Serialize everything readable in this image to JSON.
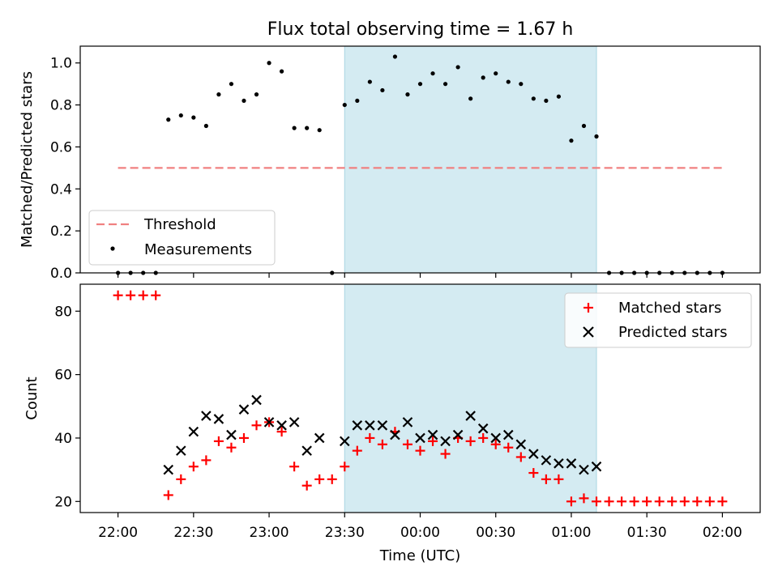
{
  "chart_data": [
    {
      "type": "scatter",
      "title": "Flux total observing time = 1.67 h",
      "xlabel": "",
      "ylabel": "Matched/Predicted stars",
      "ylim": [
        0.0,
        1.08
      ],
      "yticks": [
        "0.0",
        "0.2",
        "0.4",
        "0.6",
        "0.8",
        "1.0"
      ],
      "x_range": [
        "21:45",
        "02:15"
      ],
      "shaded_range": [
        "23:30",
        "01:10"
      ],
      "shaded_color": "#d4ebf2",
      "legend_position": "lower-left",
      "threshold": {
        "name": "Threshold",
        "value": 0.5,
        "x_start": "22:00",
        "x_end": "02:00",
        "color": "#f08080"
      },
      "series": [
        {
          "name": "Measurements",
          "color": "#000000",
          "x": [
            "22:00",
            "22:05",
            "22:10",
            "22:15",
            "22:20",
            "22:25",
            "22:30",
            "22:35",
            "22:40",
            "22:45",
            "22:50",
            "22:55",
            "23:00",
            "23:05",
            "23:10",
            "23:15",
            "23:20",
            "23:25",
            "23:30",
            "23:35",
            "23:40",
            "23:45",
            "23:50",
            "23:55",
            "00:00",
            "00:05",
            "00:10",
            "00:15",
            "00:20",
            "00:25",
            "00:30",
            "00:35",
            "00:40",
            "00:45",
            "00:50",
            "00:55",
            "01:00",
            "01:05",
            "01:10",
            "01:15",
            "01:20",
            "01:25",
            "01:30",
            "01:35",
            "01:40",
            "01:45",
            "01:50",
            "01:55",
            "02:00"
          ],
          "y": [
            0,
            0,
            0,
            0,
            0.73,
            0.75,
            0.74,
            0.7,
            0.85,
            0.9,
            0.82,
            0.85,
            1.0,
            0.96,
            0.69,
            0.69,
            0.68,
            0,
            0.8,
            0.82,
            0.91,
            0.87,
            1.03,
            0.85,
            0.9,
            0.95,
            0.9,
            0.98,
            0.83,
            0.93,
            0.95,
            0.91,
            0.9,
            0.83,
            0.82,
            0.84,
            0.63,
            0.7,
            0.65,
            0,
            0,
            0,
            0,
            0,
            0,
            0,
            0,
            0,
            0
          ]
        }
      ]
    },
    {
      "type": "scatter",
      "xlabel": "Time (UTC)",
      "ylabel": "Count",
      "ylim": [
        16.5,
        88.5
      ],
      "yticks": [
        "20",
        "40",
        "60",
        "80"
      ],
      "xticks": [
        "22:00",
        "22:30",
        "23:00",
        "23:30",
        "00:00",
        "00:30",
        "01:00",
        "01:30",
        "02:00"
      ],
      "x_range": [
        "21:45",
        "02:15"
      ],
      "shaded_range": [
        "23:30",
        "01:10"
      ],
      "legend_position": "upper-right",
      "series": [
        {
          "name": "Matched stars",
          "marker": "+",
          "color": "#ff0000",
          "x": [
            "22:00",
            "22:05",
            "22:10",
            "22:15",
            "22:20",
            "22:25",
            "22:30",
            "22:35",
            "22:40",
            "22:45",
            "22:50",
            "22:55",
            "23:00",
            "23:05",
            "23:10",
            "23:15",
            "23:20",
            "23:25",
            "23:30",
            "23:35",
            "23:40",
            "23:45",
            "23:50",
            "23:55",
            "00:00",
            "00:05",
            "00:10",
            "00:15",
            "00:20",
            "00:25",
            "00:30",
            "00:35",
            "00:40",
            "00:45",
            "00:50",
            "00:55",
            "01:00",
            "01:05",
            "01:10",
            "01:15",
            "01:20",
            "01:25",
            "01:30",
            "01:35",
            "01:40",
            "01:45",
            "01:50",
            "01:55",
            "02:00"
          ],
          "y": [
            85,
            85,
            85,
            85,
            22,
            27,
            31,
            33,
            39,
            37,
            40,
            44,
            45,
            42,
            31,
            25,
            27,
            27,
            31,
            36,
            40,
            38,
            42,
            38,
            36,
            39,
            35,
            40,
            39,
            40,
            38,
            37,
            34,
            29,
            27,
            27,
            20,
            21,
            20,
            20,
            20,
            20,
            20,
            20,
            20,
            20,
            20,
            20,
            20
          ]
        },
        {
          "name": "Predicted stars",
          "marker": "x",
          "color": "#000000",
          "x": [
            "22:20",
            "22:25",
            "22:30",
            "22:35",
            "22:40",
            "22:45",
            "22:50",
            "22:55",
            "23:00",
            "23:05",
            "23:10",
            "23:15",
            "23:20",
            "23:30",
            "23:35",
            "23:40",
            "23:45",
            "23:50",
            "23:55",
            "00:00",
            "00:05",
            "00:10",
            "00:15",
            "00:20",
            "00:25",
            "00:30",
            "00:35",
            "00:40",
            "00:45",
            "00:50",
            "00:55",
            "01:00",
            "01:05",
            "01:10"
          ],
          "y": [
            30,
            36,
            42,
            47,
            46,
            41,
            49,
            52,
            45,
            44,
            45,
            36,
            40,
            39,
            44,
            44,
            44,
            41,
            45,
            40,
            41,
            39,
            41,
            47,
            43,
            40,
            41,
            38,
            35,
            33,
            32,
            32,
            30,
            31
          ]
        }
      ]
    }
  ]
}
